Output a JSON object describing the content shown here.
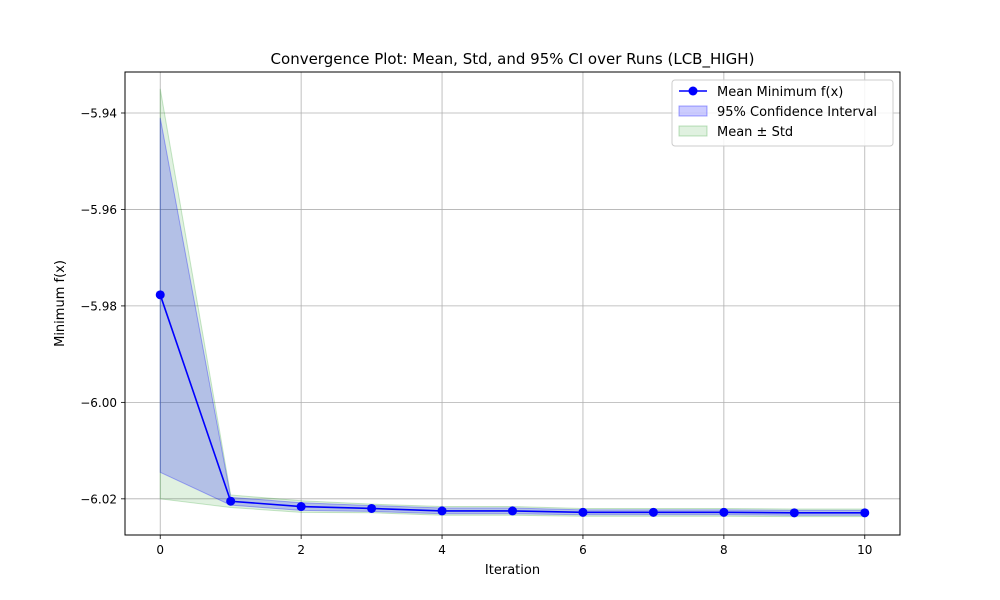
{
  "chart_data": {
    "type": "line",
    "title": "Convergence Plot: Mean, Std, and 95% CI over Runs (LCB_HIGH)",
    "xlabel": "Iteration",
    "ylabel": "Minimum f(x)",
    "xlim": [
      -0.5,
      10.5
    ],
    "ylim": [
      -6.0275,
      -5.9315
    ],
    "xticks": [
      0,
      2,
      4,
      6,
      8,
      10
    ],
    "xtick_labels": [
      "0",
      "2",
      "4",
      "6",
      "8",
      "10"
    ],
    "yticks": [
      -5.94,
      -5.96,
      -5.98,
      -6.0,
      -6.02
    ],
    "ytick_labels": [
      "−5.94",
      "−5.96",
      "−5.98",
      "−6.00",
      "−6.02"
    ],
    "grid": true,
    "legend_position": "top-right",
    "x": [
      0,
      1,
      2,
      3,
      4,
      5,
      6,
      7,
      8,
      9,
      10
    ],
    "series": [
      {
        "name": "Mean Minimum f(x)",
        "kind": "line",
        "color": "#0000ff",
        "marker": "circle",
        "values": [
          -5.9777,
          -6.0205,
          -6.0216,
          -6.022,
          -6.0225,
          -6.0225,
          -6.0228,
          -6.0228,
          -6.0228,
          -6.0229,
          -6.0229
        ]
      },
      {
        "name": "95% Confidence Interval",
        "kind": "band",
        "color": "#0000ff",
        "opacity": 0.2,
        "upper": [
          -5.941,
          -6.0197,
          -6.0208,
          -6.0214,
          -6.0219,
          -6.0219,
          -6.0223,
          -6.0223,
          -6.0223,
          -6.0224,
          -6.0224
        ],
        "lower": [
          -6.0145,
          -6.0213,
          -6.0224,
          -6.0226,
          -6.0231,
          -6.0231,
          -6.0233,
          -6.0233,
          -6.0233,
          -6.0234,
          -6.0234
        ]
      },
      {
        "name": "Mean ± Std",
        "kind": "band",
        "color": "#2ca02c",
        "opacity": 0.15,
        "upper": [
          -5.935,
          -6.0192,
          -6.0204,
          -6.0211,
          -6.0216,
          -6.0216,
          -6.022,
          -6.022,
          -6.022,
          -6.0221,
          -6.0221
        ],
        "lower": [
          -6.02,
          -6.0218,
          -6.0228,
          -6.0229,
          -6.0234,
          -6.0234,
          -6.0236,
          -6.0236,
          -6.0236,
          -6.0237,
          -6.0237
        ]
      }
    ]
  }
}
